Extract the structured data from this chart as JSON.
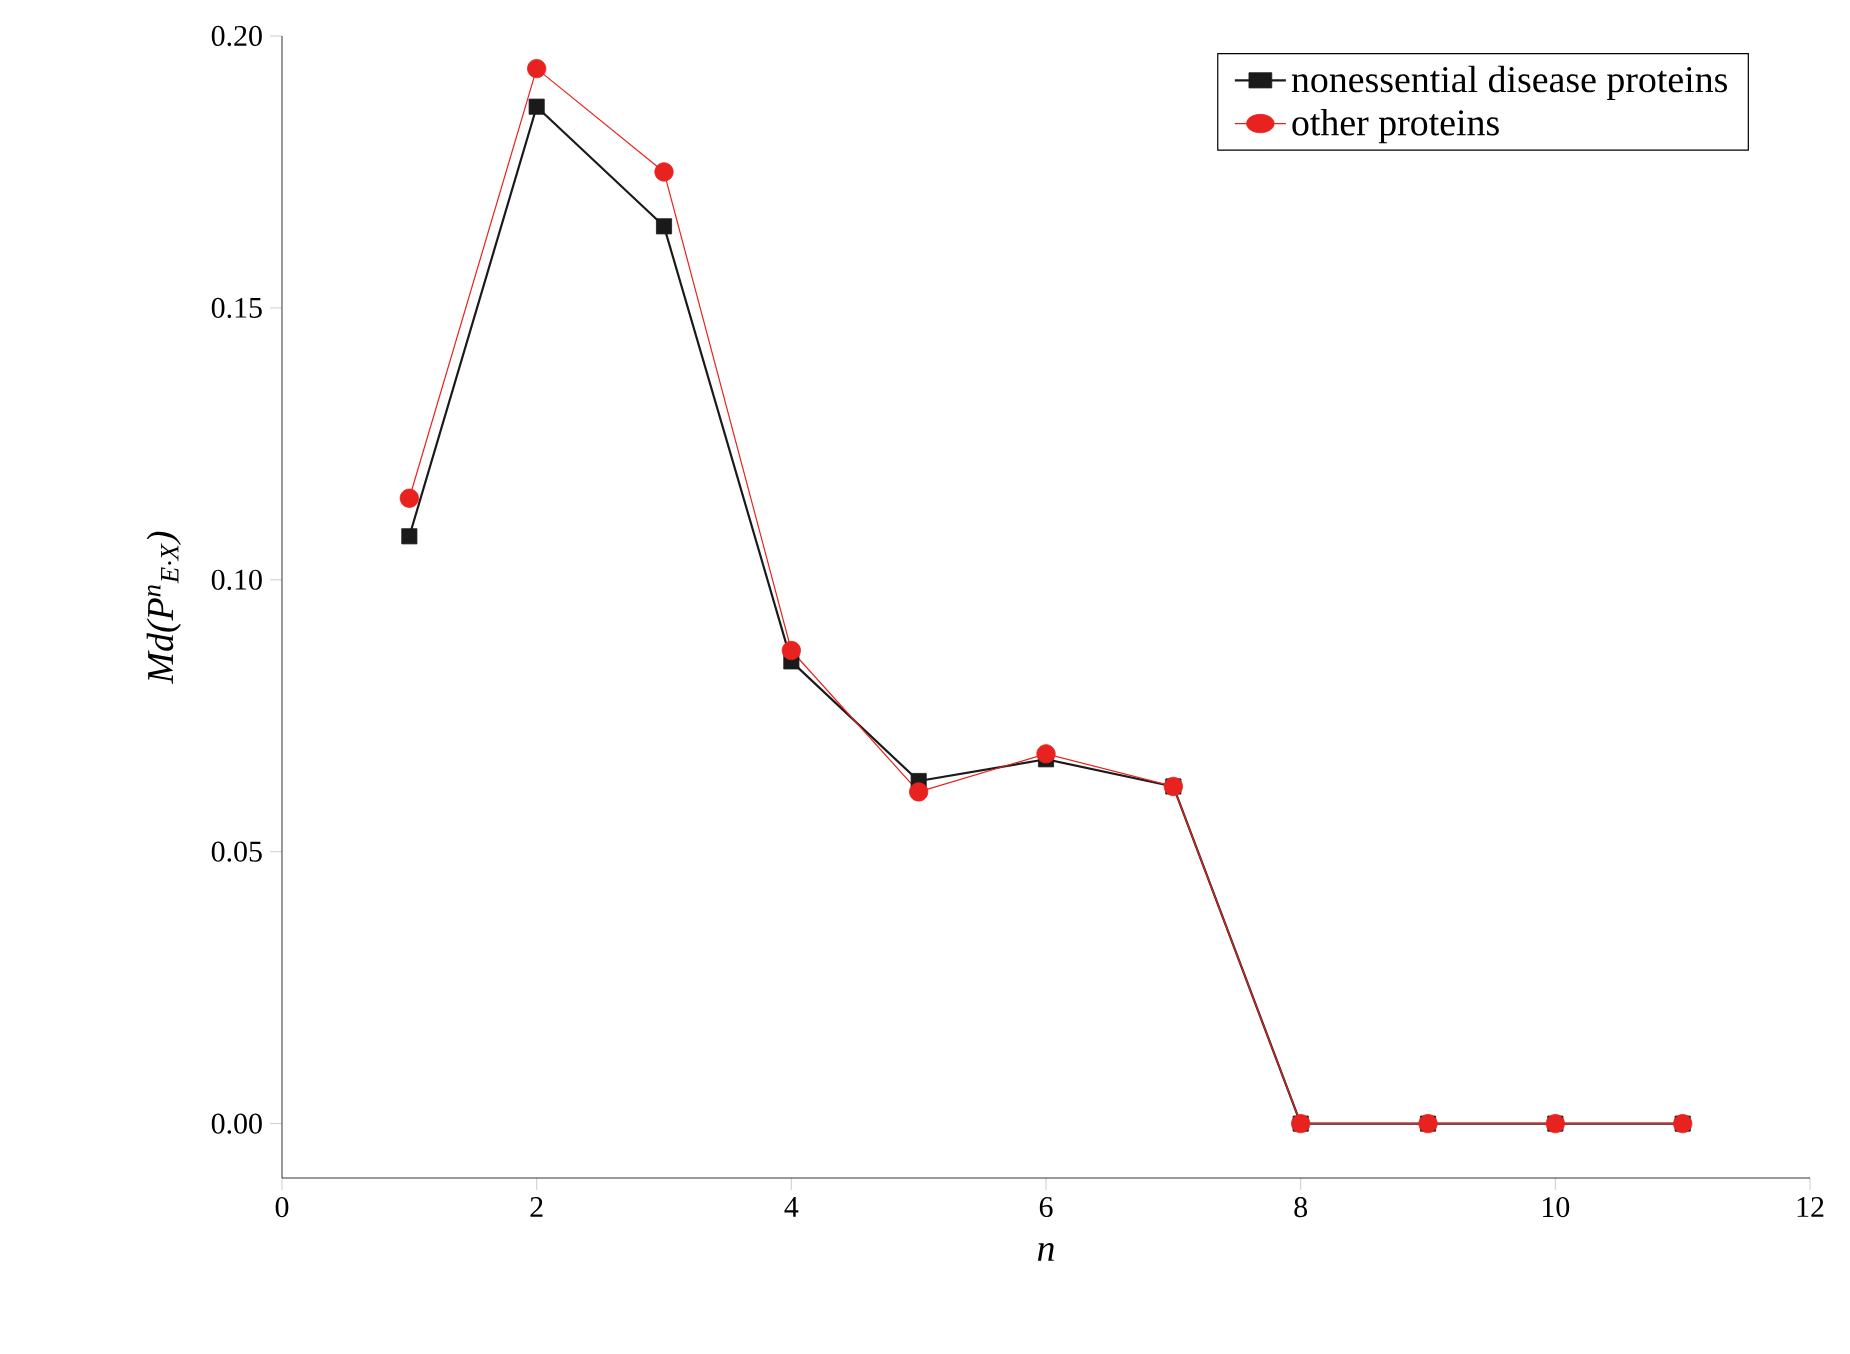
{
  "chart_data": {
    "type": "line",
    "xlabel": "n",
    "ylabel": "Md(P$^{n}$$_{E·X}$)",
    "x": [
      1,
      2,
      3,
      4,
      5,
      6,
      7,
      8,
      9,
      10,
      11
    ],
    "series": [
      {
        "name": "nonessential disease proteins",
        "color": "#1a1a1a",
        "marker": "square",
        "values": [
          0.108,
          0.187,
          0.165,
          0.085,
          0.063,
          0.067,
          0.062,
          0,
          0,
          0,
          0
        ]
      },
      {
        "name": "other proteins",
        "color": "#e8221e",
        "marker": "circle",
        "values": [
          0.115,
          0.194,
          0.175,
          0.087,
          0.061,
          0.068,
          0.062,
          0,
          0,
          0,
          0
        ]
      }
    ],
    "xlim": [
      0,
      12
    ],
    "xticks": [
      0,
      2,
      4,
      6,
      8,
      10,
      12
    ],
    "ylim": [
      -0.01,
      0.2
    ],
    "yticks": [
      {
        "value": 0,
        "label": "0.00"
      },
      {
        "value": 0.05,
        "label": "0.05"
      },
      {
        "value": 0.1,
        "label": "0.10"
      },
      {
        "value": 0.15,
        "label": "0.15"
      },
      {
        "value": 0.2,
        "label": "0.20"
      }
    ],
    "legend": "top right",
    "grid": false,
    "line_style": "solid"
  }
}
